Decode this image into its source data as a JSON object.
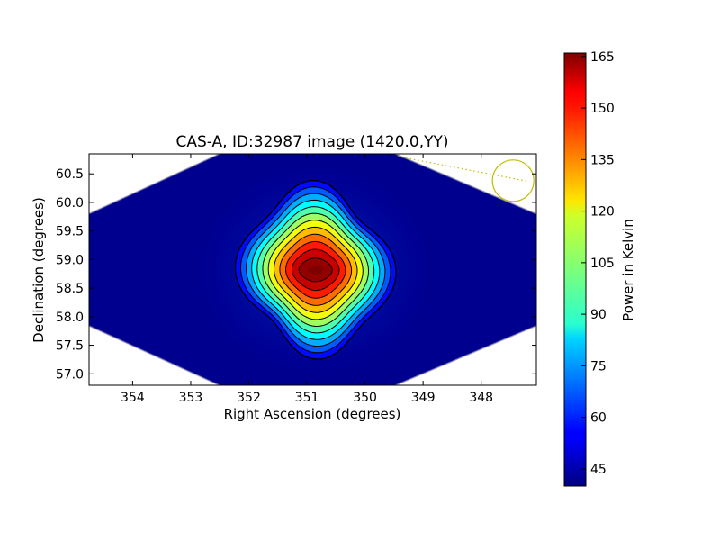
{
  "chart_data": {
    "type": "heatmap",
    "title": "CAS-A, ID:32987 image (1420.0,YY)",
    "xlabel": "Right Ascension (degrees)",
    "ylabel": "Declination (degrees)",
    "xlim": [
      354.75,
      347.05
    ],
    "ylim": [
      56.8,
      60.85
    ],
    "x_ticks": [
      354,
      353,
      352,
      351,
      350,
      349,
      348
    ],
    "x_tick_labels": [
      "354",
      "353",
      "352",
      "351",
      "350",
      "349",
      "348"
    ],
    "y_ticks": [
      57.0,
      57.5,
      58.0,
      58.5,
      59.0,
      59.5,
      60.0,
      60.5
    ],
    "y_tick_labels": [
      "57.0",
      "57.5",
      "58.0",
      "58.5",
      "59.0",
      "59.5",
      "60.0",
      "60.5"
    ],
    "colorbar": {
      "label": "Power in Kelvin",
      "range": [
        40,
        166
      ],
      "ticks": [
        45,
        60,
        75,
        90,
        105,
        120,
        135,
        150,
        165
      ],
      "tick_labels": [
        "45",
        "60",
        "75",
        "90",
        "105",
        "120",
        "135",
        "150",
        "165"
      ],
      "colormap": "jet"
    },
    "source": {
      "ra": 350.85,
      "dec": 58.82,
      "peak_kelvin": 165,
      "background_kelvin": 42
    },
    "contour_levels": [
      52,
      62,
      72,
      82,
      92,
      102,
      112,
      122,
      132,
      142,
      152,
      162
    ],
    "beam_marker": {
      "ra": 347.45,
      "dec": 60.38,
      "color": "#bfbf00"
    },
    "colors": {
      "background_level": "#00008f",
      "contour": "#000000",
      "beam": "#bfbf00"
    }
  }
}
